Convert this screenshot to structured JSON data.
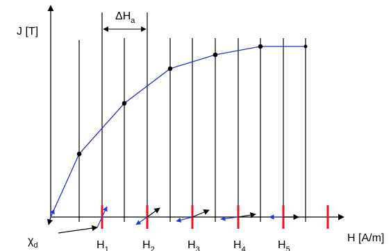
{
  "diagram": {
    "y_axis_label": "J [T]",
    "x_axis_label": "H [A/m]",
    "delta_label": {
      "main": "ΔH",
      "sub": "a"
    },
    "chi_label": {
      "main": "χ",
      "sub": "d"
    },
    "h_labels": [
      {
        "main": "H",
        "sub": "1"
      },
      {
        "main": "H",
        "sub": "2"
      },
      {
        "main": "H",
        "sub": "3"
      },
      {
        "main": "H",
        "sub": "4"
      },
      {
        "main": "H",
        "sub": "5"
      }
    ],
    "colors": {
      "curve": "#1f2fd0",
      "field_marks": "#e8121c",
      "axes": "#000000",
      "arrows_blue": "#2038d8"
    }
  }
}
